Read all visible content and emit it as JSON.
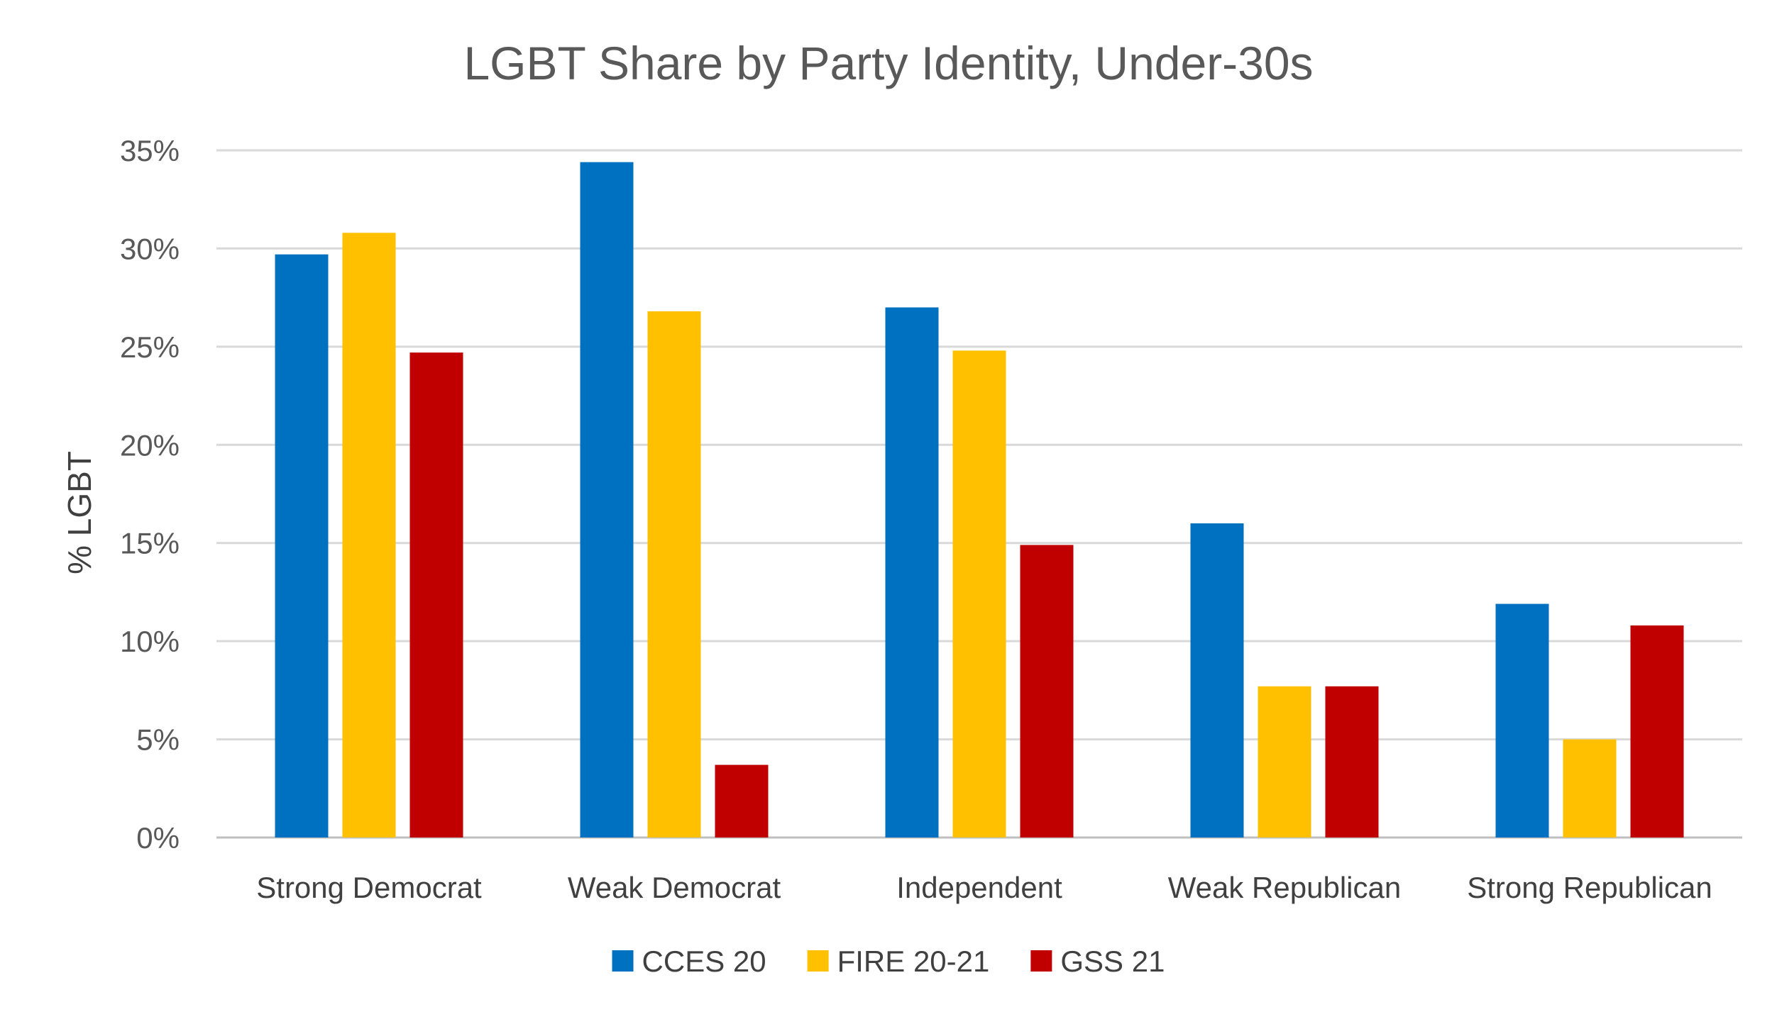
{
  "chart_data": {
    "type": "bar",
    "title": "LGBT Share by Party Identity, Under-30s",
    "xlabel": "",
    "ylabel": "% LGBT",
    "ylim": [
      0,
      35
    ],
    "yticks": [
      0,
      5,
      10,
      15,
      20,
      25,
      30,
      35
    ],
    "ytick_labels": [
      "0%",
      "5%",
      "10%",
      "15%",
      "20%",
      "25%",
      "30%",
      "35%"
    ],
    "grid": "horizontal",
    "legend": "bottom",
    "categories": [
      "Strong Democrat",
      "Weak Democrat",
      "Independent",
      "Weak Republican",
      "Strong Republican"
    ],
    "series": [
      {
        "name": "CCES 20",
        "color": "#0070C0",
        "values": [
          29.7,
          34.4,
          27.0,
          16.0,
          11.9
        ]
      },
      {
        "name": "FIRE 20-21",
        "color": "#FFC000",
        "values": [
          30.8,
          26.8,
          24.8,
          7.7,
          5.0
        ]
      },
      {
        "name": "GSS 21",
        "color": "#C00000",
        "values": [
          24.7,
          3.7,
          14.9,
          7.7,
          10.8
        ]
      }
    ]
  }
}
